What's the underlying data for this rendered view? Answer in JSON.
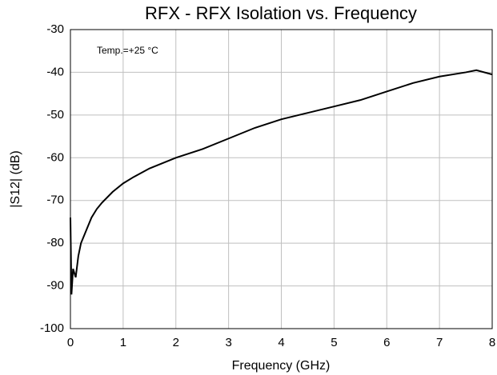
{
  "chart_data": {
    "type": "line",
    "title": "RFX - RFX Isolation vs. Frequency",
    "x_label": "Frequency (GHz)",
    "y_label": "|S12| (dB)",
    "annotation": "Temp.=+25 °C",
    "x": [
      0.0,
      0.02,
      0.05,
      0.1,
      0.15,
      0.2,
      0.3,
      0.4,
      0.5,
      0.6,
      0.8,
      1.0,
      1.2,
      1.5,
      2.0,
      2.5,
      3.0,
      3.5,
      4.0,
      4.5,
      5.0,
      5.5,
      6.0,
      6.5,
      7.0,
      7.5,
      7.7,
      8.0
    ],
    "series": [
      {
        "name": "|S12|",
        "color": "#000000",
        "values": [
          -74,
          -92,
          -86,
          -88,
          -83,
          -80,
          -77,
          -74,
          -72,
          -70.5,
          -68,
          -66,
          -64.5,
          -62.5,
          -60,
          -58,
          -55.5,
          -53,
          -51,
          -49.5,
          -48,
          -46.5,
          -44.5,
          -42.5,
          -41,
          -40,
          -39.5,
          -40.5
        ]
      }
    ],
    "xlim": [
      0,
      8
    ],
    "xticks": [
      0,
      1,
      2,
      3,
      4,
      5,
      6,
      7,
      8
    ],
    "ylim": [
      -100,
      -30
    ],
    "yticks": [
      -100,
      -90,
      -80,
      -70,
      -60,
      -50,
      -40,
      -30
    ],
    "grid": true
  }
}
